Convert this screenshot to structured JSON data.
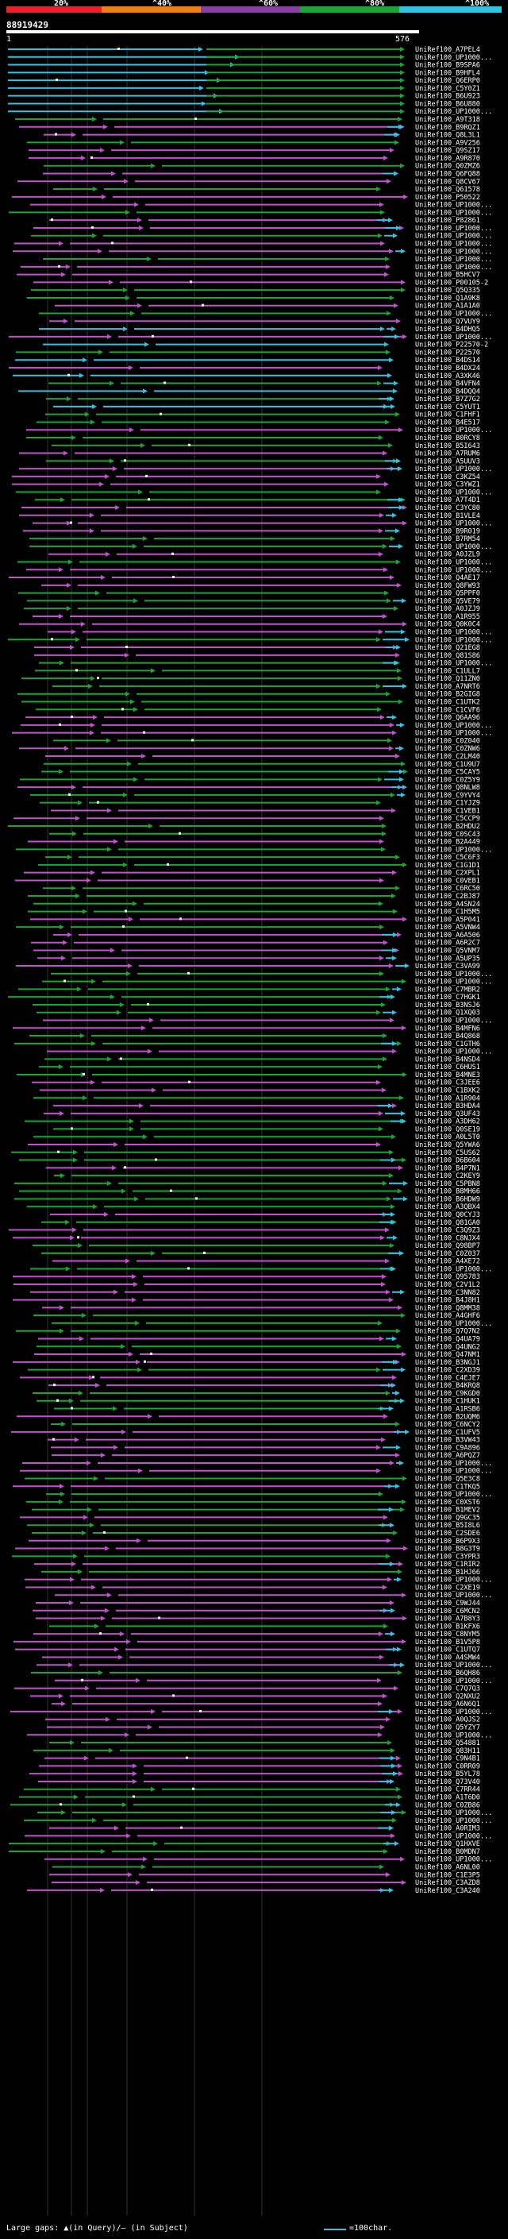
{
  "scale": {
    "labels": [
      "20%",
      "^40%",
      "^60%",
      "^80%",
      "^100%"
    ],
    "colors": [
      "#e8202a",
      "#f07f12",
      "#8b3fa6",
      "#1aa634",
      "#2ec4e6"
    ]
  },
  "query": {
    "id": "88919429",
    "start": "1",
    "end": "576"
  },
  "legend": {
    "gaps_text": "Large gaps: ▲(in Query)/— (in Subject)",
    "scale_text": "=100char."
  },
  "colors": {
    "cyan": "#2ec4e6",
    "green": "#1aa634",
    "magenta": "#c64fd1",
    "white": "#ffffff",
    "background": "#000000"
  },
  "hits": [
    "UniRef100_A7PEL4",
    "UniRef100_UP1000...",
    "UniRef100_B9SPA6",
    "UniRef100_B9HFL4",
    "UniRef100_Q6ERP0",
    "UniRef100_C5Y0Z1",
    "UniRef100_B6U923",
    "UniRef100_B6U880",
    "UniRef100_UP1000...",
    "UniRef100_A9T318",
    "UniRef100_B9RQZ1",
    "UniRef100_Q8L3L1",
    "UniRef100_A9V256",
    "UniRef100_Q9SZ17",
    "UniRef100_A9R870",
    "UniRef100_Q0ZMZ6",
    "UniRef100_Q6FQ88",
    "UniRef100_Q8CV67",
    "UniRef100_Q61578",
    "UniRef100_P50522",
    "UniRef100_UP1000...",
    "UniRef100_UP1000...",
    "UniRef100_P82861",
    "UniRef100_UP1000...",
    "UniRef100_UP1000...",
    "UniRef100_UP1000...",
    "UniRef100_UP1000...",
    "UniRef100_UP1000...",
    "UniRef100_UP1000...",
    "UniRef100_B5HCV7",
    "UniRef100_P00105-2",
    "UniRef100_Q5Q335",
    "UniRef100_Q1A9K8",
    "UniRef100_A1A1A0",
    "UniRef100_UP1000...",
    "UniRef100_Q7VUY9",
    "UniRef100_B4DHQ5",
    "UniRef100_UP1000...",
    "UniRef100_P22570-2",
    "UniRef100_P22570",
    "UniRef100_B4DS14",
    "UniRef100_B4DX24",
    "UniRef100_A3XK46",
    "UniRef100_B4VFN4",
    "UniRef100_B4DQQ4",
    "UniRef100_B7Z7G2",
    "UniRef100_C5YUT1",
    "UniRef100_C1FHF1",
    "UniRef100_B4E517",
    "UniRef100_UP1000...",
    "UniRef100_B0RCY8",
    "UniRef100_B5I643",
    "UniRef100_A7RUM6",
    "UniRef100_A5UUV3",
    "UniRef100_UP1000...",
    "UniRef100_C3KZ54",
    "UniRef100_C3YWZ1",
    "UniRef100_UP1000...",
    "UniRef100_A7T4D1",
    "UniRef100_C3YC80",
    "UniRef100_B1VLE4",
    "UniRef100_UP1000...",
    "UniRef100_B9R019",
    "UniRef100_B7RM54",
    "UniRef100_UP1000...",
    "UniRef100_A0JZL9",
    "UniRef100_UP1000...",
    "UniRef100_UP1000...",
    "UniRef100_Q4AE17",
    "UniRef100_Q8FW93",
    "UniRef100_Q5PPF0",
    "UniRef100_Q5VE79",
    "UniRef100_A0JZJ9",
    "UniRef100_A1R955",
    "UniRef100_Q0K0C4",
    "UniRef100_UP1000...",
    "UniRef100_UP1000...",
    "UniRef100_Q21EG8",
    "UniRef100_Q81S86",
    "UniRef100_UP1000...",
    "UniRef100_C1ULL7",
    "UniRef100_Q11ZN0",
    "UniRef100_A7NRT6",
    "UniRef100_B2GIG8",
    "UniRef100_C1UTK2",
    "UniRef100_C1CVF6",
    "UniRef100_Q6AA96",
    "UniRef100_UP1000...",
    "UniRef100_UP1000...",
    "UniRef100_C0Z040",
    "UniRef100_C0ZNW6",
    "UniRef100_C2LM40",
    "UniRef100_C1U9U7",
    "UniRef100_C5CAY5",
    "UniRef100_C0Z5Y9",
    "UniRef100_Q8NLW8",
    "UniRef100_C9YVY4",
    "UniRef100_C1YJZ9",
    "UniRef100_C1VEB1",
    "UniRef100_C5CCP9",
    "UniRef100_B2HDU2",
    "UniRef100_C0SC43",
    "UniRef100_B2A449",
    "UniRef100_UP1000...",
    "UniRef100_C5C6F3",
    "UniRef100_C1G1D1",
    "UniRef100_C2XPL1",
    "UniRef100_C0VEB1",
    "UniRef100_C6RC50",
    "UniRef100_C2BJ87",
    "UniRef100_A4SN24",
    "UniRef100_C1H5M5",
    "UniRef100_A5P041",
    "UniRef100_A5VNW4",
    "UniRef100_A6A506",
    "UniRef100_A6R2C7",
    "UniRef100_Q5VNM7",
    "UniRef100_A5UP35",
    "UniRef100_C3VA99",
    "UniRef100_UP1000...",
    "UniRef100_UP1000...",
    "UniRef100_C7MBR2",
    "UniRef100_C7HGK1",
    "UniRef100_B3NSJ6",
    "UniRef100_Q1XQ03",
    "UniRef100_UP1000...",
    "UniRef100_B4MFN6",
    "UniRef100_B4Q868",
    "UniRef100_C1GTH6",
    "UniRef100_UP1000...",
    "UniRef100_B4NSD4",
    "UniRef100_C6HUS1",
    "UniRef100_B4MNE3",
    "UniRef100_C3JEE6",
    "UniRef100_C1BXK2",
    "UniRef100_A1R904",
    "UniRef100_B3HDA4",
    "UniRef100_Q3UF43",
    "UniRef100_A3DH62",
    "UniRef100_Q0SE19",
    "UniRef100_A0L5T0",
    "UniRef100_Q5YWA6",
    "UniRef100_C5US62",
    "UniRef100_D6B604",
    "UniRef100_B4P7N1",
    "UniRef100_C2KEY9",
    "UniRef100_C5PBN8",
    "UniRef100_B8MH66",
    "UniRef100_B6HDW9",
    "UniRef100_A3QBX4",
    "UniRef100_Q0CYJ3",
    "UniRef100_Q81GA0",
    "UniRef100_C3Q9Z3",
    "UniRef100_C8NJX4",
    "UniRef100_Q98BP7",
    "UniRef100_C0Z037",
    "UniRef100_A4XE72",
    "UniRef100_UP1000...",
    "UniRef100_Q95783",
    "UniRef100_C2V1L2",
    "UniRef100_C3NN82",
    "UniRef100_B4J8H1",
    "UniRef100_Q8MM38",
    "UniRef100_A4GHF6",
    "UniRef100_UP1000...",
    "UniRef100_Q7Q7N2",
    "UniRef100_Q4UA79",
    "UniRef100_Q4UNG2",
    "UniRef100_Q47NM1",
    "UniRef100_B3NGJ1",
    "UniRef100_C2XD39",
    "UniRef100_C4EJE7",
    "UniRef100_B4KRQ8",
    "UniRef100_C9KGD0",
    "UniRef100_C1HUK1",
    "UniRef100_A1RSB6",
    "UniRef100_B2UQM6",
    "UniRef100_C6NCY2",
    "UniRef100_C1UFV5",
    "UniRef100_B3VW43",
    "UniRef100_C9A896",
    "UniRef100_A6PQZ7",
    "UniRef100_UP1000...",
    "UniRef100_UP1000...",
    "UniRef100_Q5E3C8",
    "UniRef100_C1TKQ5",
    "UniRef100_UP1000...",
    "UniRef100_C0XST6",
    "UniRef100_B1MEV2",
    "UniRef100_Q9GC35",
    "UniRef100_B5I8L6",
    "UniRef100_C2SDE6",
    "UniRef100_B6P9X3",
    "UniRef100_B8G3T9",
    "UniRef100_C3YPR3",
    "UniRef100_C1RIR2",
    "UniRef100_B1HJ66",
    "UniRef100_UP1000...",
    "UniRef100_C2XE19",
    "UniRef100_UP1000...",
    "UniRef100_C9WJ44",
    "UniRef100_C6MCN2",
    "UniRef100_A7B8Y3",
    "UniRef100_B1KFX6",
    "UniRef100_C8NYM5",
    "UniRef100_B1V5P8",
    "UniRef100_C1UTQ7",
    "UniRef100_A4SMW4",
    "UniRef100_UP1000...",
    "UniRef100_B6QH86",
    "UniRef100_UP1000...",
    "UniRef100_C7Q7Q3",
    "UniRef100_Q2NXU2",
    "UniRef100_A6N6Q1",
    "UniRef100_UP1000...",
    "UniRef100_A0QJS2",
    "UniRef100_Q5YZY7",
    "UniRef100_UP1000...",
    "UniRef100_Q54881",
    "UniRef100_Q83H11",
    "UniRef100_C9N4B1",
    "UniRef100_C0RR09",
    "UniRef100_B5YL78",
    "UniRef100_Q73V40",
    "UniRef100_C7RR44",
    "UniRef100_A1T6D0",
    "UniRef100_C0ZB86",
    "UniRef100_UP1000...",
    "UniRef100_UP1000...",
    "UniRef100_A0RIM3",
    "UniRef100_UP1000...",
    "UniRef100_Q1HXVE",
    "UniRef100_B0MDN7",
    "UniRef100_UP1000...",
    "UniRef100_A6NL00",
    "UniRef100_C1E3P5",
    "UniRef100_C3AZD8",
    "UniRef100_C3A240"
  ]
}
